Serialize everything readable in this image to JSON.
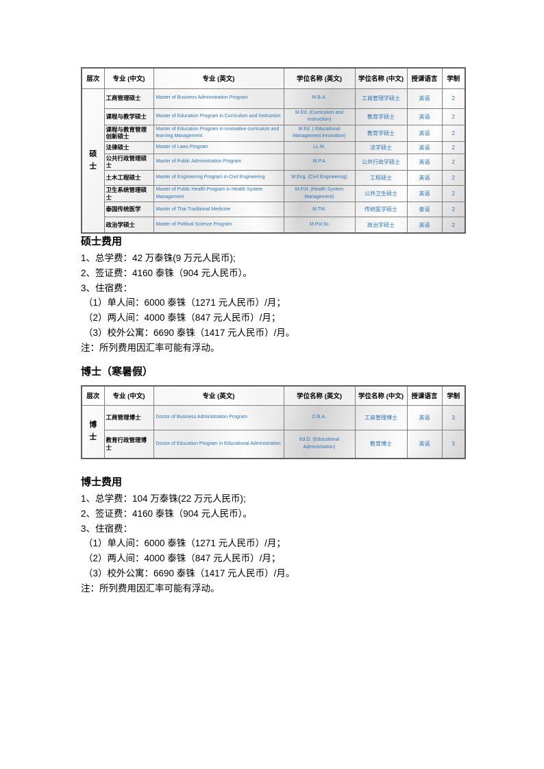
{
  "document": {
    "colors": {
      "link_blue": "#2E74B5",
      "table_border": "#7f7f7f",
      "text": "#000000"
    },
    "table_headers": [
      "层次",
      "专业 (中文)",
      "专业 (英文)",
      "学位名称 (英文)",
      "学位名称 (中文)",
      "授课语言",
      "学制"
    ],
    "master_table": {
      "level": "硕士",
      "rows": [
        {
          "major_cn": "工商管理硕士",
          "major_en": "Master of Business Administration Program",
          "degree_en": "M.B.A.",
          "degree_cn": "工商管理学硕士",
          "language": "英语",
          "duration": "2"
        },
        {
          "major_cn": "课程与教学硕士",
          "major_en": "Master of Education Program in Curriculum and Instruction",
          "degree_en": "M.Ed. (Curriculum and Instruction)",
          "degree_cn": "教育学硕士",
          "language": "英语",
          "duration": "2"
        },
        {
          "major_cn": "课程与教育管理创新硕士",
          "major_en": "Master of  Education Program in innovative curriculum and learning Management",
          "degree_en": "M.Ed. ( Educational Management Innovation)",
          "degree_cn": "教育学硕士",
          "language": "英语",
          "duration": "2"
        },
        {
          "major_cn": "法律硕士",
          "major_en": "Master of Laws Program",
          "degree_en": "LL.M.",
          "degree_cn": "法学硕士",
          "language": "英语",
          "duration": "2"
        },
        {
          "major_cn": "公共行政管理硕士",
          "major_en": "Master of Public Administration Program",
          "degree_en": "M.P.A",
          "degree_cn": "公共行政学硕士",
          "language": "英语",
          "duration": "2"
        },
        {
          "major_cn": "土木工程硕士",
          "major_en": "Master of Engineering Program in Civil Engineering",
          "degree_en": "M.Eng. (Civil Engineering)",
          "degree_cn": "工程硕士",
          "language": "英语",
          "duration": "2"
        },
        {
          "major_cn": "卫生系统管理硕士",
          "major_en": "Master of Public Health Program in Health System Management",
          "degree_en": "M.P.H. (Health System Management)",
          "degree_cn": "公共卫生硕士",
          "language": "英语",
          "duration": "2"
        },
        {
          "major_cn": "泰国传统医学",
          "major_en": "Master of Thai Traditional Medicine",
          "degree_en": "M.TM.",
          "degree_cn": "传统医学硕士",
          "language": "泰语",
          "duration": "2"
        },
        {
          "major_cn": "政治学硕士",
          "major_en": "Master of Political Science Program",
          "degree_en": "M.Pol.Sc",
          "degree_cn": "政治学硕士",
          "language": "英语",
          "duration": "2"
        }
      ]
    },
    "master_fees": {
      "title": "硕士费用",
      "lines": [
        "1、总学费：42 万泰铢(9 万元人民币);",
        "2、签证费：4160 泰铢（904 元人民币）。",
        "3、住宿费：",
        "（1）单人间：6000 泰铢（1271 元人民币）/月；",
        "（2）两人间：4000 泰铢（847 元人民币）/月；",
        "（3）校外公寓：6690 泰铢（1417 元人民币）/月。",
        "注：所列费用因汇率可能有浮动。"
      ]
    },
    "doctor_section": {
      "title": "博士（寒暑假）"
    },
    "doctor_table": {
      "level": "博士",
      "rows": [
        {
          "major_cn": "工商管理博士",
          "major_en": "Doctor of Business Administration Program",
          "degree_en": "D.B.A.",
          "degree_cn": "工商管理博士",
          "language": "英语",
          "duration": "3"
        },
        {
          "major_cn": "教育行政管理博士",
          "major_en": "Doctor of Education Program in Educational Administration",
          "degree_en": "Ed.D. (Educational Administration)",
          "degree_cn": "教育博士",
          "language": "英语",
          "duration": "3"
        }
      ]
    },
    "doctor_fees": {
      "title": "博士费用",
      "lines": [
        "1、总学费：104 万泰铢(22 万元人民币);",
        "2、签证费：4160 泰铢（904 元人民币）。",
        "3、住宿费：",
        "（1）单人间：6000 泰铢（1271 元人民币）/月；",
        "（2）两人间：4000 泰铢（847 元人民币）/月；",
        "（3）校外公寓：6690 泰铢（1417 元人民币）/月。",
        "注：所列费用因汇率可能有浮动。"
      ]
    }
  }
}
